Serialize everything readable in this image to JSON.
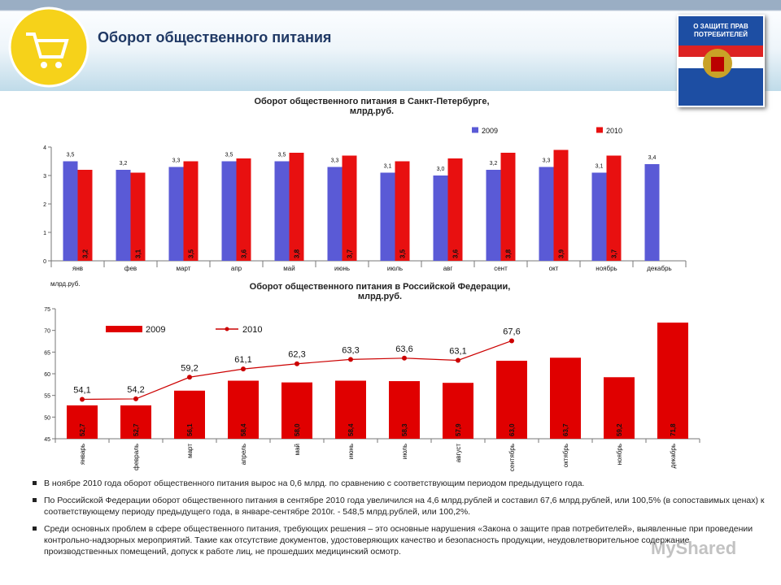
{
  "header": {
    "title": "Оборот общественного питания"
  },
  "book": {
    "title": "О ЗАЩИТЕ ПРАВ ПОТРЕБИТЕЛЕЙ"
  },
  "chart_data": [
    {
      "type": "bar",
      "title": "Оборот общественного питания в Санкт-Петербурге, млрд.руб.",
      "categories": [
        "янв",
        "фев",
        "март",
        "апр",
        "май",
        "июнь",
        "июль",
        "авг",
        "сент",
        "окт",
        "ноябрь",
        "декабрь"
      ],
      "series": [
        {
          "name": "2009",
          "color": "#5a5ad6",
          "values": [
            3.5,
            3.2,
            3.3,
            3.5,
            3.5,
            3.3,
            3.1,
            3.0,
            3.2,
            3.3,
            3.1,
            3.4
          ],
          "value_labels": [
            "3,5",
            "3,2",
            "3,3",
            "3,5",
            "3,5",
            "3,3",
            "3,1",
            "3,0",
            "3,2",
            "3,3",
            "3,1",
            "3,4"
          ]
        },
        {
          "name": "2010",
          "color": "#e81010",
          "values": [
            3.2,
            3.1,
            3.5,
            3.6,
            3.8,
            3.7,
            3.5,
            3.6,
            3.8,
            3.9,
            3.7,
            null
          ],
          "value_labels": [
            "3,2",
            "3,1",
            "3,5",
            "3,6",
            "3,8",
            "3,7",
            "3,5",
            "3,6",
            "3,8",
            "3,9",
            "3,7",
            null
          ]
        }
      ],
      "ylim": [
        0,
        4
      ],
      "yticks": [
        0,
        1,
        2,
        3,
        4
      ],
      "grid": false,
      "legend": "top-right"
    },
    {
      "type": "combo",
      "title": "Оборот общественного питания в Российской Федерации, млрд.руб.",
      "y_label": "млрд.руб.",
      "categories": [
        "январь",
        "февраль",
        "март",
        "апрель",
        "май",
        "июнь",
        "июль",
        "август",
        "сентябрь",
        "октябрь",
        "ноябрь",
        "декабрь"
      ],
      "series": [
        {
          "name": "2009",
          "type": "bar",
          "color": "#e00000",
          "values": [
            52.7,
            52.7,
            56.1,
            58.4,
            58.0,
            58.4,
            58.3,
            57.9,
            63.0,
            63.7,
            59.2,
            71.8
          ],
          "value_labels": [
            "52,7",
            "52,7",
            "56,1",
            "58,4",
            "58,0",
            "58,4",
            "58,3",
            "57,9",
            "63,0",
            "63,7",
            "59,2",
            "71,8"
          ]
        },
        {
          "name": "2010",
          "type": "line",
          "color": "#cc0000",
          "values": [
            54.1,
            54.2,
            59.2,
            61.1,
            62.3,
            63.3,
            63.6,
            63.1,
            67.6,
            null,
            null,
            null
          ],
          "value_labels": [
            "54,1",
            "54,2",
            "59,2",
            "61,1",
            "62,3",
            "63,3",
            "63,6",
            "63,1",
            "67,6",
            null,
            null,
            null
          ]
        }
      ],
      "ylim": [
        45,
        75
      ],
      "yticks": [
        45,
        50,
        55,
        60,
        65,
        70,
        75
      ],
      "grid": false,
      "legend": "top-left"
    }
  ],
  "bullets": [
    "В ноябре 2010 года оборот общественного питания вырос на 0,6 млрд. по сравнению с соответствующим периодом предыдущего года.",
    "По Российской Федерации оборот общественного питания в сентябре 2010 года увеличился на 4,6 млрд.рублей и составил 67,6 млрд.рублей, или 100,5% (в сопоставимых ценах) к соответствующему периоду предыдущего года, в январе-сентябре 2010г. - 548,5 млрд.рублей, или 100,2%.",
    "Среди основных проблем в сфере общественного питания, требующих решения – это основные нарушения «Закона о защите прав потребителей», выявленные при проведении контрольно-надзорных мероприятий. Такие как отсутствие документов, удостоверяющих качество и безопасность продукции, неудовлетворительное содержание производственных помещений, допуск к работе лиц, не прошедших медицинский осмотр."
  ],
  "watermark": "MyShared"
}
